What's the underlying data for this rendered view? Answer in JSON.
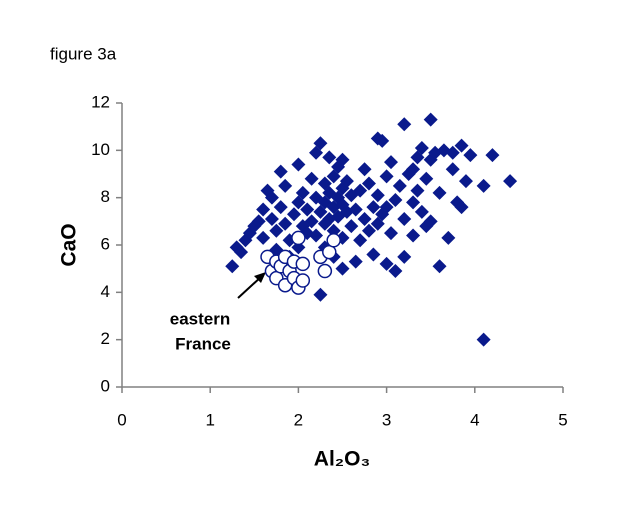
{
  "chart_data": {
    "type": "scatter",
    "title": "figure 3a",
    "x_label": "Al₂O₃",
    "y_label": "CaO",
    "annotation_lines": [
      "eastern",
      "France"
    ],
    "xlim": [
      0,
      5
    ],
    "xticks": [
      0,
      1,
      2,
      3,
      4,
      5
    ],
    "ylim": [
      0,
      12
    ],
    "yticks": [
      0,
      2,
      4,
      6,
      8,
      10,
      12
    ],
    "grid": false,
    "series": [
      {
        "color": "#0a1a8c",
        "marker": "diamond",
        "x": [
          1.25,
          1.3,
          1.35,
          1.4,
          1.45,
          1.5,
          1.55,
          1.6,
          1.6,
          1.65,
          1.7,
          1.7,
          1.75,
          1.75,
          1.8,
          1.8,
          1.85,
          1.85,
          1.9,
          1.95,
          2.0,
          2.0,
          2.05,
          2.05,
          2.1,
          2.1,
          2.15,
          2.15,
          2.2,
          2.2,
          2.2,
          2.25,
          2.25,
          2.25,
          2.3,
          2.3,
          2.3,
          2.3,
          2.35,
          2.35,
          2.35,
          2.4,
          2.4,
          2.4,
          2.4,
          2.45,
          2.45,
          2.45,
          2.5,
          2.5,
          2.5,
          2.5,
          2.5,
          2.55,
          2.55,
          2.6,
          2.6,
          2.65,
          2.65,
          2.7,
          2.7,
          2.75,
          2.75,
          2.8,
          2.8,
          2.85,
          2.85,
          2.9,
          2.9,
          2.9,
          2.95,
          2.95,
          3.0,
          3.0,
          3.0,
          3.05,
          3.05,
          3.1,
          3.1,
          3.15,
          3.2,
          3.2,
          3.2,
          3.25,
          3.3,
          3.3,
          3.35,
          3.35,
          3.4,
          3.4,
          3.45,
          3.45,
          3.5,
          3.5,
          3.5,
          3.55,
          3.6,
          3.6,
          3.65,
          3.7,
          3.75,
          3.8,
          3.85,
          3.85,
          3.9,
          3.95,
          4.1,
          4.1,
          4.2,
          4.4,
          3.75,
          3.3,
          2.0,
          1.9
        ],
        "values": [
          5.1,
          5.9,
          5.7,
          6.2,
          6.5,
          6.8,
          7.0,
          6.3,
          7.5,
          8.3,
          8.0,
          7.1,
          6.6,
          5.8,
          9.1,
          7.6,
          8.5,
          6.9,
          6.2,
          7.3,
          9.4,
          7.8,
          6.8,
          8.2,
          7.5,
          6.5,
          8.8,
          7.0,
          9.9,
          8.0,
          6.4,
          10.3,
          7.4,
          3.9,
          8.6,
          7.8,
          6.9,
          5.9,
          9.7,
          8.2,
          7.1,
          8.9,
          7.6,
          6.6,
          5.5,
          9.3,
          8.0,
          7.2,
          9.6,
          8.4,
          7.7,
          6.3,
          5.0,
          8.7,
          7.4,
          8.1,
          6.8,
          7.5,
          5.3,
          8.3,
          6.2,
          7.1,
          9.2,
          6.6,
          8.6,
          7.6,
          5.6,
          10.5,
          8.1,
          6.9,
          7.3,
          10.4,
          8.9,
          7.6,
          5.2,
          6.5,
          9.5,
          7.9,
          4.9,
          8.5,
          11.1,
          7.1,
          5.5,
          9.0,
          7.8,
          6.4,
          9.7,
          8.3,
          10.1,
          7.4,
          6.8,
          8.8,
          11.3,
          9.6,
          7.0,
          9.9,
          8.2,
          5.1,
          10.0,
          6.3,
          9.2,
          7.8,
          10.2,
          7.6,
          8.7,
          9.8,
          8.5,
          2.0,
          9.8,
          8.7,
          9.9,
          9.2,
          5.9,
          5.5
        ]
      },
      {
        "color": "#0a1a8c",
        "marker": "circle-open",
        "x": [
          1.65,
          1.7,
          1.75,
          1.75,
          1.8,
          1.85,
          1.85,
          1.9,
          1.95,
          1.95,
          2.0,
          2.05,
          2.05,
          2.0,
          2.25,
          2.3,
          2.35,
          2.4
        ],
        "values": [
          5.5,
          4.9,
          5.3,
          4.6,
          5.1,
          4.3,
          5.5,
          4.9,
          4.6,
          5.3,
          4.2,
          4.5,
          5.2,
          6.3,
          5.5,
          4.9,
          5.7,
          6.2
        ]
      }
    ]
  }
}
